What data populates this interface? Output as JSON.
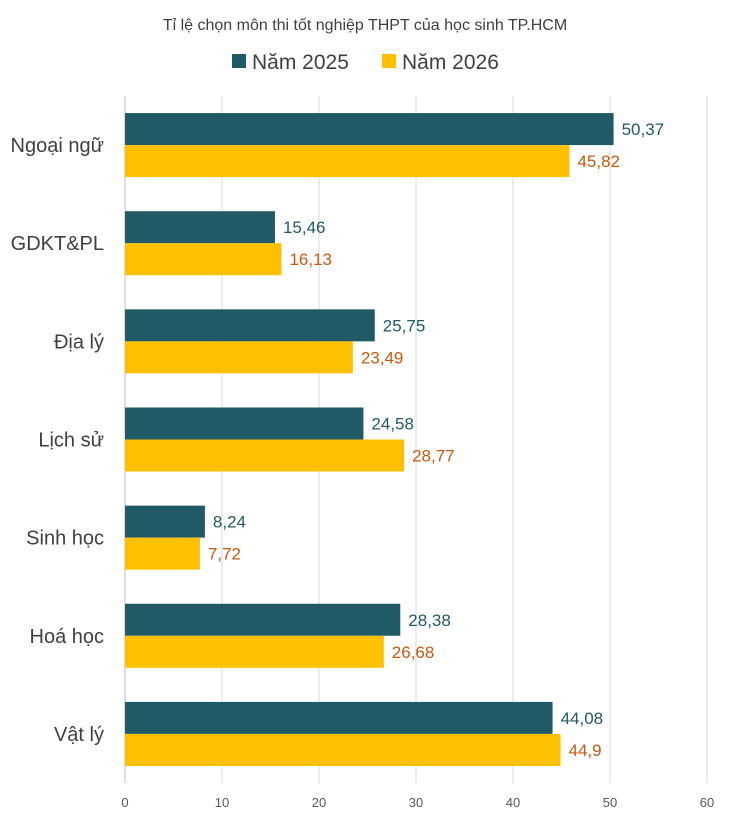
{
  "chart_data": {
    "type": "bar",
    "orientation": "horizontal",
    "title": "Tỉ lệ chọn môn thi tốt nghiệp THPT của học sinh TP.HCM",
    "xlabel": "",
    "ylabel": "",
    "categories": [
      "Ngoại ngữ",
      "GDKT&PL",
      "Địa lý",
      "Lịch sử",
      "Sinh học",
      "Hoá học",
      "Vật lý"
    ],
    "series": [
      {
        "name": "Năm 2025",
        "color": "#215A67",
        "values": [
          50.37,
          15.46,
          25.75,
          24.58,
          8.24,
          28.38,
          44.08
        ],
        "labels": [
          "50,37",
          "15,46",
          "25,75",
          "24,58",
          "8,24",
          "28,38",
          "44,08"
        ]
      },
      {
        "name": "Năm 2026",
        "color": "#FFC000",
        "label_color": "#C55A11",
        "values": [
          45.82,
          16.13,
          23.49,
          28.77,
          7.72,
          26.68,
          44.9
        ],
        "labels": [
          "45,82",
          "16,13",
          "23,49",
          "28,77",
          "7,72",
          "26,68",
          "44,9"
        ]
      }
    ],
    "xlim": [
      0,
      60
    ],
    "xticks": [
      0,
      10,
      20,
      30,
      40,
      50,
      60
    ],
    "grid": true,
    "legend_position": "top"
  }
}
